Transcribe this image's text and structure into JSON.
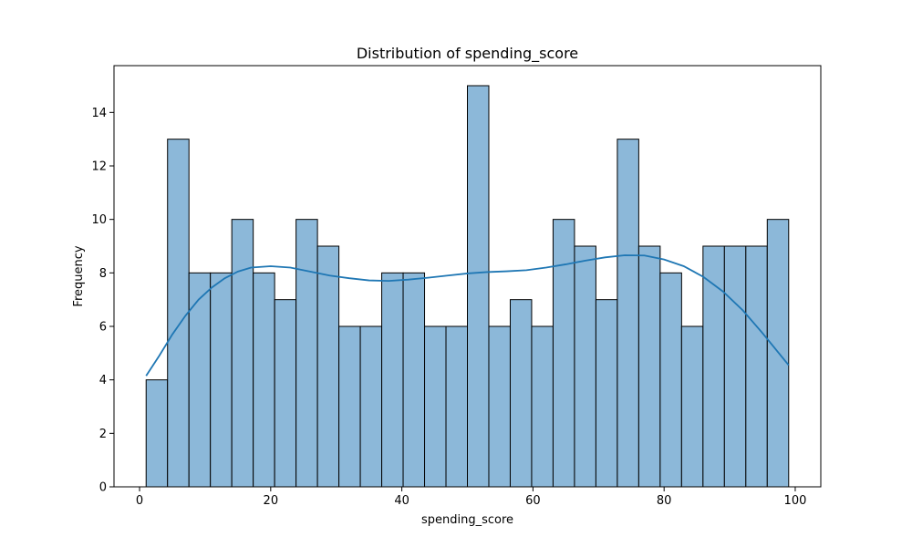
{
  "chart_data": {
    "type": "bar",
    "title": "Distribution of spending_score",
    "xlabel": "spending_score",
    "ylabel": "Frequency",
    "xlim": [
      -3.9,
      103.9
    ],
    "ylim": [
      0,
      15.75
    ],
    "x_ticks": [
      0,
      20,
      40,
      60,
      80,
      100
    ],
    "y_ticks": [
      0,
      2,
      4,
      6,
      8,
      10,
      12,
      14
    ],
    "bin_start": 1,
    "bin_width": 3.2667,
    "values": [
      4,
      13,
      8,
      8,
      10,
      8,
      7,
      10,
      9,
      6,
      6,
      8,
      8,
      6,
      6,
      15,
      6,
      7,
      6,
      10,
      9,
      7,
      13,
      9,
      8,
      6,
      9,
      9,
      9,
      10
    ],
    "kde": {
      "x": [
        1,
        3,
        5,
        7,
        9,
        11,
        13,
        15,
        17,
        20,
        23,
        26,
        29,
        32,
        35,
        38,
        41,
        44,
        47,
        50,
        53,
        56,
        59,
        62,
        65,
        68,
        71,
        74,
        77,
        80,
        83,
        86,
        89,
        92,
        95,
        97,
        99
      ],
      "y": [
        4.15,
        4.9,
        5.7,
        6.4,
        7.0,
        7.45,
        7.8,
        8.05,
        8.2,
        8.25,
        8.2,
        8.05,
        7.9,
        7.8,
        7.72,
        7.7,
        7.75,
        7.82,
        7.9,
        7.98,
        8.03,
        8.06,
        8.1,
        8.2,
        8.32,
        8.46,
        8.58,
        8.66,
        8.65,
        8.5,
        8.25,
        7.85,
        7.3,
        6.6,
        5.75,
        5.15,
        4.55
      ]
    },
    "grid": false,
    "bar_color": "#8cb8d9",
    "edge_color": "#000000",
    "kde_color": "#1f77b4"
  }
}
